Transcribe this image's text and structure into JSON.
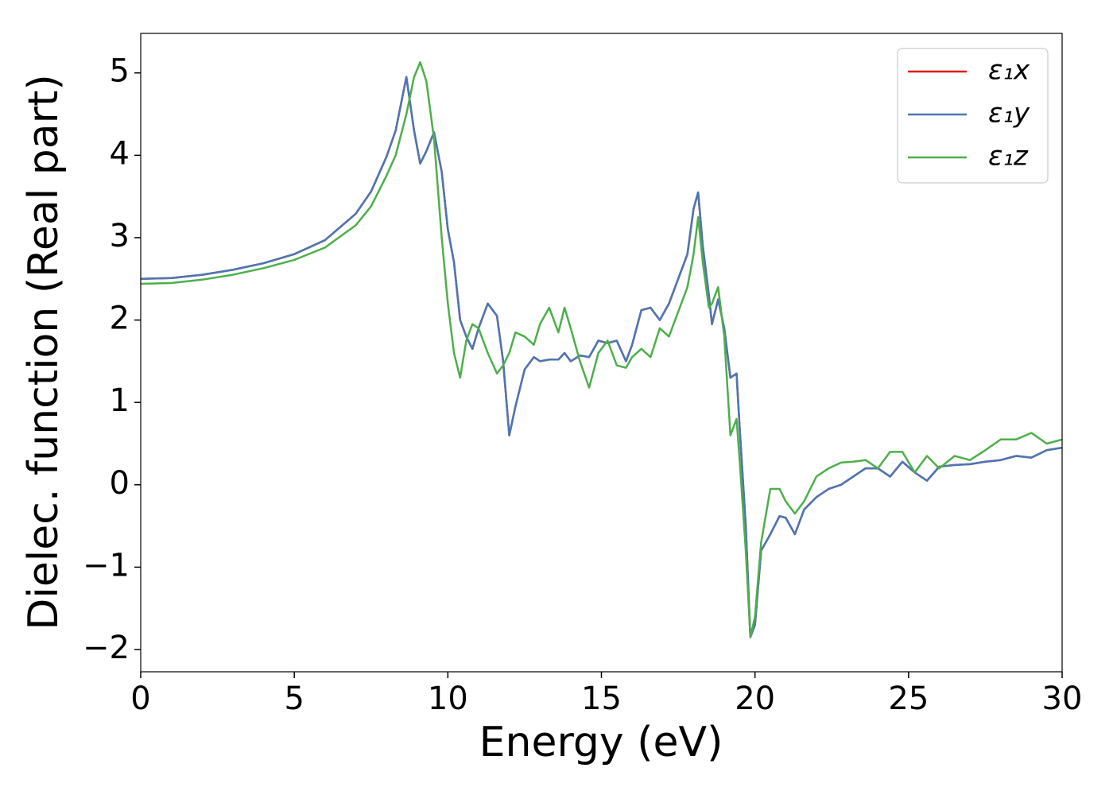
{
  "chart_data": {
    "type": "line",
    "x_label": "Energy (eV)",
    "y_label": "Dielec. function (Real part)",
    "x": [
      0,
      1,
      2,
      3,
      4,
      5,
      6,
      7,
      7.5,
      8,
      8.3,
      8.65,
      8.9,
      9.1,
      9.3,
      9.55,
      9.8,
      10,
      10.2,
      10.4,
      10.6,
      10.8,
      11,
      11.3,
      11.6,
      11.8,
      12,
      12.2,
      12.5,
      12.8,
      13,
      13.3,
      13.6,
      13.8,
      14,
      14.3,
      14.6,
      14.9,
      15.2,
      15.5,
      15.8,
      16,
      16.3,
      16.6,
      16.9,
      17.2,
      17.5,
      17.8,
      18,
      18.15,
      18.3,
      18.5,
      18.6,
      18.8,
      19,
      19.2,
      19.4,
      19.5,
      19.7,
      19.85,
      20,
      20.2,
      20.5,
      20.8,
      21,
      21.3,
      21.6,
      22,
      22.4,
      22.8,
      23.2,
      23.6,
      24,
      24.4,
      24.8,
      25.2,
      25.6,
      26,
      26.5,
      27,
      27.5,
      28,
      28.5,
      29,
      29.5,
      30
    ],
    "series": [
      {
        "name": "ε₁x",
        "color": "#e41a1c",
        "values": [
          2.5,
          2.51,
          2.55,
          2.61,
          2.69,
          2.8,
          2.97,
          3.29,
          3.56,
          3.98,
          4.3,
          4.95,
          4.3,
          3.9,
          4.05,
          4.28,
          3.8,
          3.1,
          2.7,
          2.0,
          1.8,
          1.65,
          1.9,
          2.2,
          2.05,
          1.5,
          0.6,
          0.95,
          1.4,
          1.55,
          1.5,
          1.52,
          1.52,
          1.6,
          1.5,
          1.57,
          1.55,
          1.75,
          1.72,
          1.75,
          1.5,
          1.7,
          2.12,
          2.15,
          2.0,
          2.2,
          2.5,
          2.8,
          3.35,
          3.55,
          2.9,
          2.3,
          1.95,
          2.25,
          1.9,
          1.3,
          1.35,
          0.7,
          -0.5,
          -1.85,
          -1.7,
          -0.8,
          -0.6,
          -0.38,
          -0.4,
          -0.6,
          -0.3,
          -0.15,
          -0.05,
          0.0,
          0.1,
          0.2,
          0.2,
          0.1,
          0.28,
          0.15,
          0.05,
          0.22,
          0.24,
          0.25,
          0.28,
          0.3,
          0.35,
          0.33,
          0.42,
          0.45
        ]
      },
      {
        "name": "ε₁y",
        "color": "#4a77b4",
        "values": [
          2.5,
          2.51,
          2.55,
          2.61,
          2.69,
          2.8,
          2.97,
          3.29,
          3.56,
          3.98,
          4.3,
          4.95,
          4.3,
          3.9,
          4.05,
          4.28,
          3.8,
          3.1,
          2.7,
          2.0,
          1.8,
          1.65,
          1.9,
          2.2,
          2.05,
          1.5,
          0.6,
          0.95,
          1.4,
          1.55,
          1.5,
          1.52,
          1.52,
          1.6,
          1.5,
          1.57,
          1.55,
          1.75,
          1.72,
          1.75,
          1.5,
          1.7,
          2.12,
          2.15,
          2.0,
          2.2,
          2.5,
          2.8,
          3.35,
          3.55,
          2.9,
          2.3,
          1.95,
          2.25,
          1.9,
          1.3,
          1.35,
          0.7,
          -0.5,
          -1.85,
          -1.7,
          -0.8,
          -0.6,
          -0.38,
          -0.4,
          -0.6,
          -0.3,
          -0.15,
          -0.05,
          0.0,
          0.1,
          0.2,
          0.2,
          0.1,
          0.28,
          0.15,
          0.05,
          0.22,
          0.24,
          0.25,
          0.28,
          0.3,
          0.35,
          0.33,
          0.42,
          0.45
        ]
      },
      {
        "name": "ε₁z",
        "color": "#4daf4a",
        "values": [
          2.44,
          2.45,
          2.49,
          2.55,
          2.63,
          2.73,
          2.88,
          3.15,
          3.38,
          3.75,
          4.0,
          4.5,
          4.95,
          5.13,
          4.9,
          4.2,
          3.0,
          2.2,
          1.6,
          1.3,
          1.75,
          1.95,
          1.9,
          1.6,
          1.35,
          1.45,
          1.6,
          1.85,
          1.8,
          1.7,
          1.95,
          2.15,
          1.85,
          2.15,
          1.9,
          1.5,
          1.18,
          1.6,
          1.75,
          1.45,
          1.42,
          1.55,
          1.65,
          1.55,
          1.9,
          1.8,
          2.1,
          2.4,
          2.8,
          3.25,
          2.7,
          2.15,
          2.2,
          2.4,
          1.8,
          0.6,
          0.8,
          0.3,
          -0.8,
          -1.85,
          -1.6,
          -0.7,
          -0.05,
          -0.05,
          -0.2,
          -0.35,
          -0.2,
          0.1,
          0.2,
          0.27,
          0.28,
          0.3,
          0.2,
          0.4,
          0.4,
          0.15,
          0.35,
          0.2,
          0.35,
          0.3,
          0.42,
          0.55,
          0.55,
          0.63,
          0.5,
          0.55
        ]
      }
    ],
    "xlim": [
      0,
      30
    ],
    "xticks": [
      0,
      5,
      10,
      15,
      20,
      25,
      30
    ],
    "ylim": [
      -2.27,
      5.48
    ],
    "yticks": [
      {
        "value": -2,
        "label": "−2"
      },
      {
        "value": -1,
        "label": "−1"
      },
      0,
      1,
      2,
      3,
      4,
      5
    ],
    "grid": false,
    "legend_loc": "upper right"
  }
}
